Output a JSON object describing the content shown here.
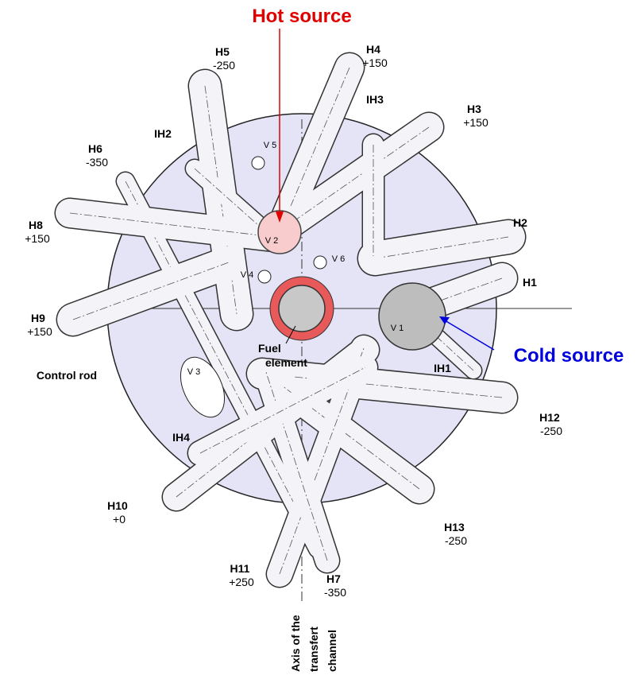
{
  "title_hot": "Hot source",
  "title_cold": "Cold source",
  "control_rod": "Control rod",
  "fuel_element": [
    "Fuel",
    "element"
  ],
  "axis_channel": [
    "Axis of the",
    "transfert",
    "channel"
  ],
  "tubes": [
    {
      "name": "H5",
      "level": "-250"
    },
    {
      "name": "H4",
      "level": "+150"
    },
    {
      "name": "H3",
      "level": "+150"
    },
    {
      "name": "H6",
      "level": "-350"
    },
    {
      "name": "H8",
      "level": "+150"
    },
    {
      "name": "H2"
    },
    {
      "name": "H1"
    },
    {
      "name": "H9",
      "level": "+150"
    },
    {
      "name": "H12",
      "level": "-250"
    },
    {
      "name": "H10",
      "level": "+0"
    },
    {
      "name": "H13",
      "level": "-250"
    },
    {
      "name": "H11",
      "level": "+250"
    },
    {
      "name": "H7",
      "level": "-350"
    },
    {
      "name": "IH2"
    },
    {
      "name": "IH3"
    },
    {
      "name": "IH1"
    },
    {
      "name": "IH4"
    }
  ],
  "vessels": [
    "V 5",
    "V 2",
    "V 4",
    "V 6",
    "V 1",
    "V 3"
  ]
}
